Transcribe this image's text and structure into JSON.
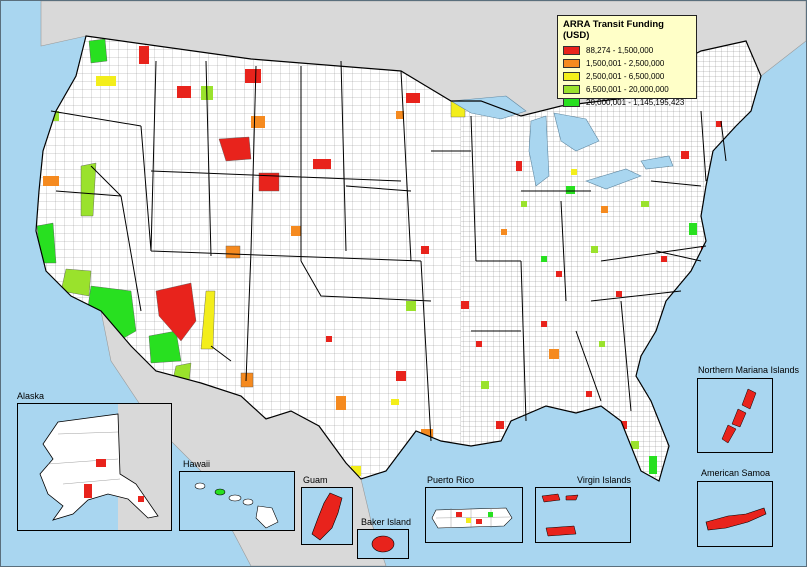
{
  "legend": {
    "title": "ARRA Transit Funding (USD)",
    "classes": [
      {
        "label": "88,274 - 1,500,000",
        "color": "#e8231c"
      },
      {
        "label": "1,500,001 - 2,500,000",
        "color": "#f58a1f"
      },
      {
        "label": "2,500,001 - 6,500,000",
        "color": "#f3ee1b"
      },
      {
        "label": "6,500,001 - 20,000,000",
        "color": "#9ae22c"
      },
      {
        "label": "20,000,001 - 1,145,195,423",
        "color": "#28e020"
      }
    ]
  },
  "colors": {
    "ocean": "#a9d6f0",
    "land_us": "#ffffff",
    "land_foreign": "#d9d9d9",
    "county_border": "#666666",
    "state_border": "#000000"
  },
  "insets": {
    "alaska": "Alaska",
    "hawaii": "Hawaii",
    "guam": "Guam",
    "baker_island": "Baker Island",
    "puerto_rico": "Puerto Rico",
    "virgin_islands": "Virgin Islands",
    "northern_mariana_islands": "Northern Mariana Islands",
    "american_samoa": "American Samoa"
  }
}
